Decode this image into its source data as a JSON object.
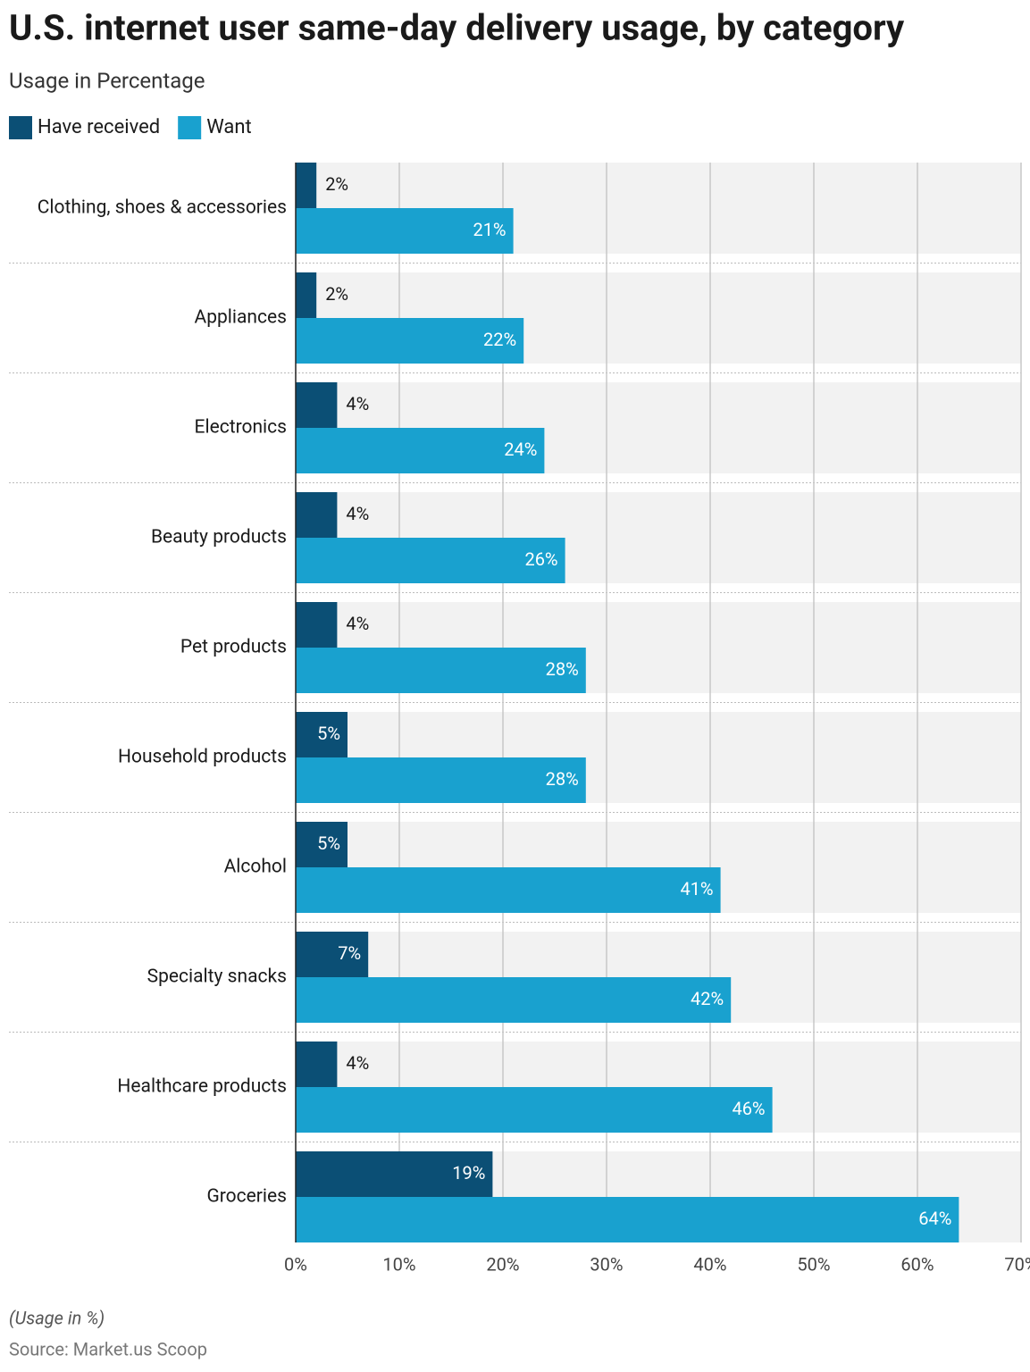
{
  "chart_data": {
    "type": "bar",
    "orientation": "horizontal",
    "title": "U.S. internet user same-day delivery usage, by category",
    "subtitle": "Usage in Percentage",
    "note": "(Usage in %)",
    "source": "Source: Market.us Scoop",
    "categories": [
      "Clothing, shoes & accessories",
      "Appliances",
      "Electronics",
      "Beauty products",
      "Pet products",
      "Household products",
      "Alcohol",
      "Specialty snacks",
      "Healthcare products",
      "Groceries"
    ],
    "series": [
      {
        "name": "Have received",
        "color": "#0b4f75",
        "values": [
          2,
          2,
          4,
          4,
          4,
          5,
          5,
          7,
          4,
          19
        ],
        "value_labels": [
          "2%",
          "2%",
          "4%",
          "4%",
          "4%",
          "5%",
          "5%",
          "7%",
          "4%",
          "19%"
        ]
      },
      {
        "name": "Want",
        "color": "#19a1cf",
        "values": [
          21,
          22,
          24,
          26,
          28,
          28,
          41,
          42,
          46,
          64
        ],
        "value_labels": [
          "21%",
          "22%",
          "24%",
          "26%",
          "28%",
          "28%",
          "41%",
          "42%",
          "46%",
          "64%"
        ]
      }
    ],
    "xlim": [
      0,
      70
    ],
    "xticks": [
      {
        "value": 0,
        "label": "0%"
      },
      {
        "value": 10,
        "label": "10%"
      },
      {
        "value": 20,
        "label": "20%"
      },
      {
        "value": 30,
        "label": "30%"
      },
      {
        "value": 40,
        "label": "40%"
      },
      {
        "value": 50,
        "label": "50%"
      },
      {
        "value": 60,
        "label": "60%"
      },
      {
        "value": 70,
        "label": "70%"
      }
    ],
    "grid": true,
    "legend": "top-left"
  }
}
